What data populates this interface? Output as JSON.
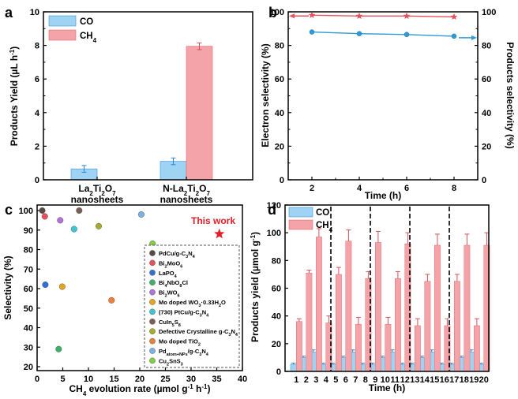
{
  "chart_data": [
    {
      "panel": "a",
      "type": "bar",
      "ylabel": "Products Yield (µL h",
      "ylabel_sup": "-1",
      "ylabel_end": ")",
      "ylim": [
        0,
        10
      ],
      "yticks": [
        "0",
        "2",
        "4",
        "6",
        "8",
        "10"
      ],
      "categories": [
        {
          "base": "La",
          "s1": "2",
          "m1": "Ti",
          "s2": "2",
          "m2": "O",
          "s3": "7",
          "line2": "nanosheets"
        },
        {
          "base": "N-La",
          "s1": "2",
          "m1": "Ti",
          "s2": "2",
          "m2": "O",
          "s3": "7",
          "line2": "nanosheets"
        }
      ],
      "series": [
        {
          "name": "CO",
          "sub": "",
          "color": "#9fd3f3",
          "values": [
            0.65,
            1.1
          ],
          "errors": [
            0.2,
            0.2
          ]
        },
        {
          "name": "CH",
          "sub": "4",
          "color": "#f4a3a8",
          "values": [
            0,
            7.95
          ],
          "errors": [
            0,
            0.2
          ]
        }
      ]
    },
    {
      "panel": "b",
      "type": "line",
      "xlabel": "Time (h)",
      "ylabel_left": "Electron selectivity (%)",
      "ylabel_right": "Products selectivity (%)",
      "xlim": [
        1,
        9
      ],
      "ylim": [
        0,
        100
      ],
      "xticks": [
        "2",
        "4",
        "6",
        "8"
      ],
      "yticks": [
        "0",
        "20",
        "40",
        "60",
        "80",
        "100"
      ],
      "series": [
        {
          "name": "Electron selectivity",
          "axis": "left",
          "color": "#e8505b",
          "marker": "star",
          "x": [
            2,
            4,
            6,
            8
          ],
          "y": [
            98,
            97.5,
            97.5,
            97
          ]
        },
        {
          "name": "Products selectivity",
          "axis": "right",
          "color": "#2e9bd6",
          "marker": "circle",
          "x": [
            2,
            4,
            6,
            8
          ],
          "y": [
            88,
            87,
            86.5,
            85.5
          ]
        }
      ]
    },
    {
      "panel": "c",
      "type": "scatter",
      "xlabel_base": "CH",
      "xlabel_sub": "4",
      "xlabel_rest": " evolution rate (µmol g",
      "xlabel_sup1": "-1",
      "xlabel_mid": " h",
      "xlabel_sup2": "-1",
      "xlabel_end": ")",
      "ylabel": "Selectivity (%)",
      "xlim": [
        0,
        40
      ],
      "ylim": [
        20,
        100
      ],
      "xticks": [
        "0",
        "5",
        "10",
        "15",
        "20",
        "25",
        "30",
        "35",
        "40"
      ],
      "yticks": [
        "20",
        "30",
        "40",
        "50",
        "60",
        "70",
        "80",
        "90",
        "100"
      ],
      "annotation": "This work",
      "this_work": {
        "x": 35.5,
        "y": 88,
        "color": "#e0202a"
      },
      "points": [
        {
          "x": 1.0,
          "y": 100,
          "color": "#5a4a44",
          "l": [
            [
              "PdCu/g-C",
              ""
            ],
            [
              "3",
              "s"
            ],
            [
              "N",
              ""
            ],
            [
              "4",
              "s"
            ]
          ]
        },
        {
          "x": 1.5,
          "y": 97,
          "color": "#e8505b",
          "l": [
            [
              "Bi",
              ""
            ],
            [
              "2",
              "s"
            ],
            [
              "MoO",
              ""
            ],
            [
              "6",
              "s"
            ]
          ]
        },
        {
          "x": 1.6,
          "y": 62,
          "color": "#2f6fd6",
          "l": [
            [
              "LaPO",
              ""
            ],
            [
              "4",
              "s"
            ]
          ]
        },
        {
          "x": 4.2,
          "y": 29,
          "color": "#3fb06a",
          "l": [
            [
              "Bi",
              ""
            ],
            [
              "4",
              "s"
            ],
            [
              "NbO",
              ""
            ],
            [
              "8",
              "s"
            ],
            [
              "Cl",
              ""
            ]
          ]
        },
        {
          "x": 4.5,
          "y": 95,
          "color": "#b173d8",
          "l": [
            [
              "Bi",
              ""
            ],
            [
              "2",
              "s"
            ],
            [
              "WO",
              ""
            ],
            [
              "6",
              "s"
            ]
          ]
        },
        {
          "x": 4.9,
          "y": 61,
          "color": "#e6a41a",
          "l": [
            [
              "Mo doped WO",
              ""
            ],
            [
              "3",
              "s"
            ],
            [
              "·0.33H",
              ""
            ],
            [
              "2",
              "s"
            ],
            [
              "O",
              ""
            ]
          ]
        },
        {
          "x": 7.2,
          "y": 90.5,
          "color": "#40c4d4",
          "l": [
            [
              "(730) PtCu/g-C",
              ""
            ],
            [
              "3",
              "s"
            ],
            [
              "N",
              ""
            ],
            [
              "4",
              "s"
            ]
          ]
        },
        {
          "x": 8.2,
          "y": 100,
          "color": "#7a5f52",
          "l": [
            [
              "CuIn",
              ""
            ],
            [
              "5",
              "s"
            ],
            [
              "S",
              ""
            ],
            [
              "8",
              "s"
            ]
          ]
        },
        {
          "x": 12.0,
          "y": 92,
          "color": "#a6ad2a",
          "l": [
            [
              "Defective Crystalline g-C",
              ""
            ],
            [
              "3",
              "s"
            ],
            [
              "N",
              ""
            ],
            [
              "4",
              "s"
            ]
          ]
        },
        {
          "x": 14.5,
          "y": 54,
          "color": "#ef7f3f",
          "l": [
            [
              "Mo doped TiO",
              ""
            ],
            [
              "2",
              "s"
            ]
          ]
        },
        {
          "x": 20.3,
          "y": 98,
          "color": "#7ab2e6",
          "l": [
            [
              "Pd",
              ""
            ],
            [
              "atom+NPs",
              "s"
            ],
            [
              "/g-C",
              ""
            ],
            [
              "3",
              "s"
            ],
            [
              "N",
              ""
            ],
            [
              "4",
              "s"
            ]
          ]
        },
        {
          "x": 22.5,
          "y": 83,
          "color": "#7fcf3f",
          "l": [
            [
              "Cu",
              ""
            ],
            [
              "2",
              "s"
            ],
            [
              "SnS",
              ""
            ],
            [
              "3",
              "s"
            ]
          ]
        }
      ]
    },
    {
      "panel": "d",
      "type": "bar",
      "xlabel": "Time (h)",
      "ylabel": "Products yield (µmol g",
      "ylabel_sup": "-1",
      "ylabel_end": ")",
      "ylim": [
        0,
        120
      ],
      "yticks": [
        "0",
        "20",
        "40",
        "60",
        "80",
        "100",
        "120"
      ],
      "categories": [
        "1",
        "2",
        "3",
        "4",
        "5",
        "6",
        "7",
        "8",
        "9",
        "10",
        "11",
        "12",
        "13",
        "14",
        "15",
        "16",
        "17",
        "18",
        "19",
        "20"
      ],
      "cycle_separators_after": [
        4,
        8,
        12,
        16
      ],
      "series": [
        {
          "name": "CO",
          "sub": "",
          "color": "#9fd3f3",
          "values": [
            5,
            10,
            14,
            5,
            5,
            10,
            14,
            5,
            5,
            10,
            14,
            5,
            5,
            10,
            14,
            5,
            5,
            10,
            14,
            5
          ],
          "errors": [
            1,
            1,
            1.5,
            1,
            1,
            1,
            1.5,
            1,
            1,
            1,
            1.5,
            1,
            1,
            1,
            1.5,
            1,
            1,
            1,
            1.5,
            1
          ]
        },
        {
          "name": "CH",
          "sub": "4",
          "color": "#f4a3a8",
          "values": [
            36,
            71,
            97,
            35,
            70,
            94,
            34,
            67,
            93,
            34,
            67,
            92,
            33,
            65,
            91,
            33,
            65,
            91,
            33,
            91
          ],
          "errors": [
            2,
            2,
            6,
            5,
            5,
            8,
            5,
            5,
            8,
            5,
            5,
            8,
            5,
            5,
            8,
            5,
            5,
            8,
            5,
            9
          ]
        }
      ]
    }
  ]
}
